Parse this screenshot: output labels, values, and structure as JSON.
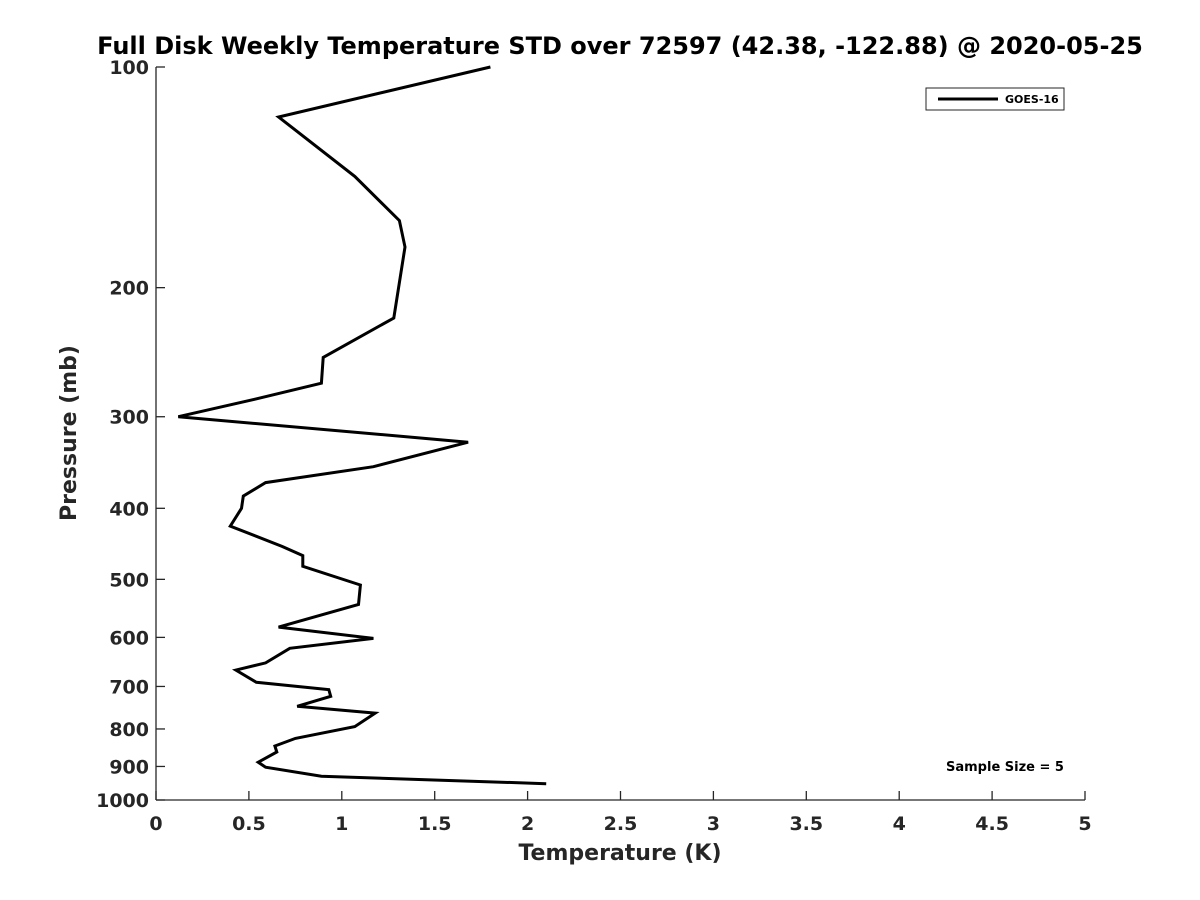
{
  "chart_data": {
    "type": "line",
    "title": "Full Disk Weekly Temperature STD over 72597 (42.38, -122.88) @ 2020-05-25",
    "xlabel": "Temperature (K)",
    "ylabel": "Pressure (mb)",
    "xlim": [
      0,
      5
    ],
    "ylim": [
      100,
      1000
    ],
    "y_scale": "log",
    "y_reversed": true,
    "x_ticks": [
      "0",
      "0.5",
      "1",
      "1.5",
      "2",
      "2.5",
      "3",
      "3.5",
      "4",
      "4.5",
      "5"
    ],
    "y_ticks": [
      "100",
      "200",
      "300",
      "400",
      "500",
      "600",
      "700",
      "800",
      "900",
      "1000"
    ],
    "grid": false,
    "legend": {
      "position": "top-right",
      "entries": [
        "GOES-16"
      ]
    },
    "annotation": "Sample Size = 5",
    "series": [
      {
        "name": "GOES-16",
        "color": "#000000",
        "x": [
          1.8,
          0.66,
          1.07,
          1.31,
          1.34,
          1.28,
          0.9,
          0.89,
          0.53,
          0.12,
          1.68,
          1.17,
          0.59,
          0.47,
          0.46,
          0.4,
          0.68,
          0.79,
          0.79,
          1.1,
          1.09,
          0.66,
          1.17,
          0.72,
          0.59,
          0.43,
          0.54,
          0.93,
          0.94,
          0.76,
          1.18,
          1.07,
          0.75,
          0.64,
          0.65,
          0.55,
          0.59,
          0.89,
          2.1
        ],
        "y": [
          100,
          117,
          141,
          162,
          176,
          220,
          249,
          270,
          284,
          300,
          325,
          351,
          369,
          385,
          400,
          423,
          451,
          464,
          480,
          509,
          541,
          581,
          602,
          621,
          650,
          665,
          691,
          707,
          722,
          745,
          761,
          794,
          824,
          844,
          860,
          888,
          902,
          928,
          950
        ]
      }
    ]
  }
}
